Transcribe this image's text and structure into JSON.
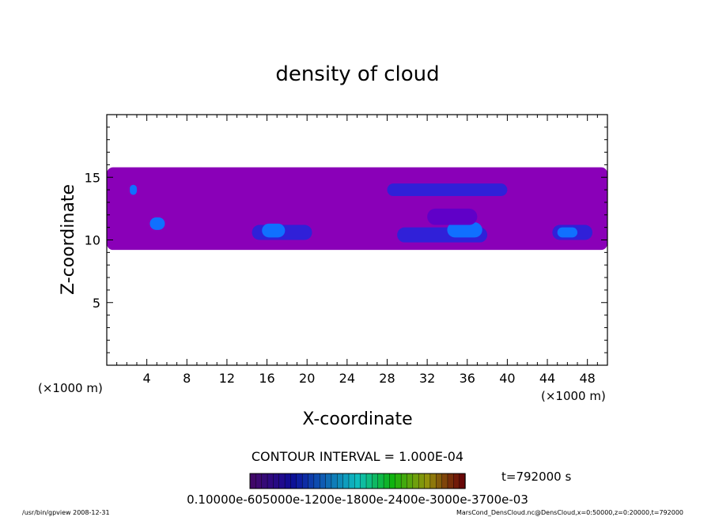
{
  "chart_data": {
    "type": "heatmap",
    "title": "density of cloud",
    "xlabel": "X-coordinate",
    "ylabel": "Z-coordinate",
    "x_unit": "(×1000 m)",
    "y_unit": "(×1000 m)",
    "xlim": [
      0,
      50
    ],
    "ylim": [
      0,
      20
    ],
    "x_ticks": [
      "4",
      "8",
      "12",
      "16",
      "20",
      "24",
      "28",
      "32",
      "36",
      "40",
      "44",
      "48"
    ],
    "y_ticks": [
      "5",
      "10",
      "15"
    ],
    "contour_interval_label": "CONTOUR INTERVAL = 1.000E-04",
    "time_label": "t=792000 s",
    "colorbar_labels": "0.10000e-605000e-1200e-1800e-2400e-3000e-3700e-03",
    "colorbar_min": 0.0001,
    "colorbar_max": 0.0037,
    "footer_left": "/usr/bin/gpview   2008-12-31",
    "footer_right": "MarsCond_DensCloud.nc@DensCloud,x=0:50000,z=0:20000,t=792000",
    "colors": {
      "low": "#8a00b8",
      "mid_low": "#6000c8",
      "mid": "#3020d8",
      "high": "#1070ff",
      "peak": "#b0f0ff"
    },
    "cloud_layer": {
      "z_bottom_approx": 9,
      "z_top_approx": 16,
      "x_extent": [
        0,
        50
      ]
    },
    "regions": [
      {
        "x": [
          0,
          50
        ],
        "z": [
          9.2,
          15.8
        ],
        "level": "low"
      },
      {
        "x": [
          2.3,
          3.0
        ],
        "z": [
          13.6,
          14.4
        ],
        "level": "high"
      },
      {
        "x": [
          4.3,
          5.8
        ],
        "z": [
          10.8,
          11.8
        ],
        "level": "high"
      },
      {
        "x": [
          14.5,
          20.5
        ],
        "z": [
          10.0,
          11.2
        ],
        "level": "mid"
      },
      {
        "x": [
          15.5,
          17.8
        ],
        "z": [
          10.2,
          11.3
        ],
        "level": "high"
      },
      {
        "x": [
          29.0,
          38.0
        ],
        "z": [
          9.8,
          11.0
        ],
        "level": "mid"
      },
      {
        "x": [
          34.0,
          37.5
        ],
        "z": [
          10.2,
          11.4
        ],
        "level": "high"
      },
      {
        "x": [
          44.5,
          48.5
        ],
        "z": [
          10.0,
          11.2
        ],
        "level": "mid"
      },
      {
        "x": [
          45.0,
          47.0
        ],
        "z": [
          10.2,
          11.0
        ],
        "level": "high"
      },
      {
        "x": [
          28.0,
          40.0
        ],
        "z": [
          13.5,
          14.5
        ],
        "level": "mid"
      },
      {
        "x": [
          32.0,
          37.0
        ],
        "z": [
          11.2,
          12.5
        ],
        "level": "mid_low"
      }
    ]
  }
}
